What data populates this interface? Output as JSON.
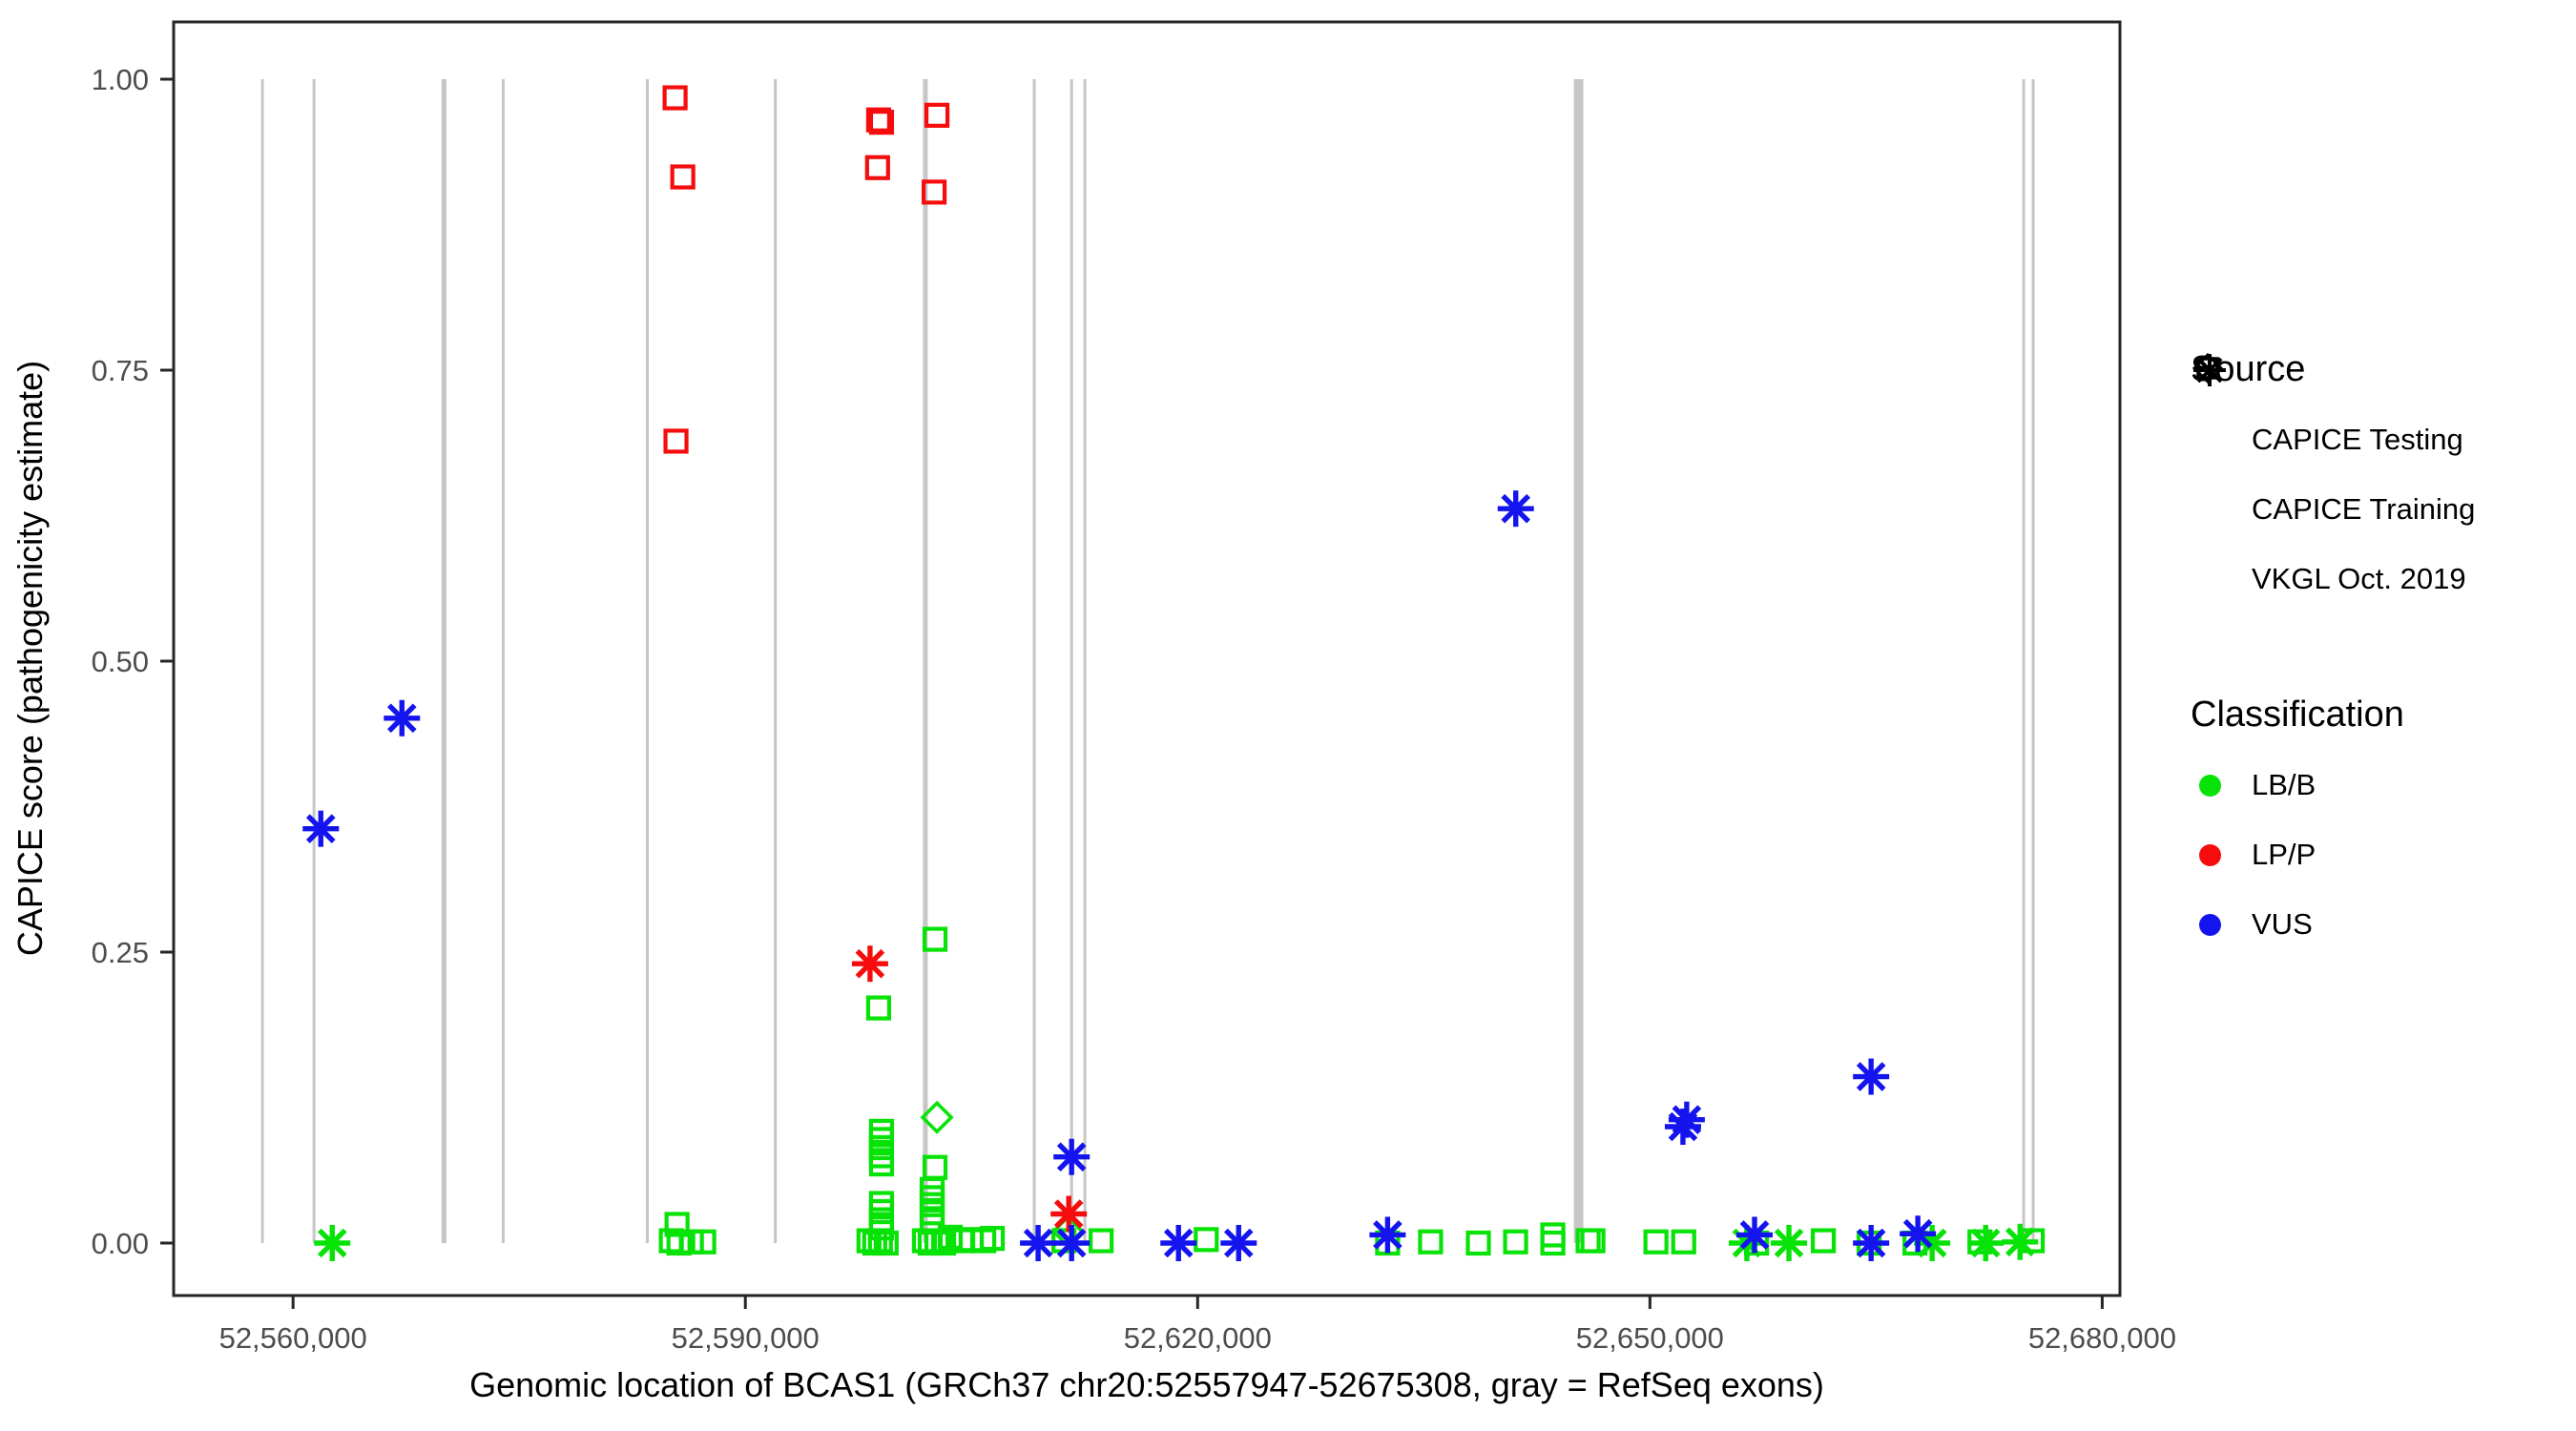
{
  "axes": {
    "x_label": "Genomic location of BCAS1 (GRCh37 chr20:52557947-52675308, gray = RefSeq exons)",
    "y_label": "CAPICE score (pathogenicity estimate)",
    "x_ticks": [
      {
        "v": 52560000,
        "label": "52,560,000"
      },
      {
        "v": 52590000,
        "label": "52,590,000"
      },
      {
        "v": 52620000,
        "label": "52,620,000"
      },
      {
        "v": 52650000,
        "label": "52,650,000"
      },
      {
        "v": 52680000,
        "label": "52,680,000"
      }
    ],
    "y_ticks": [
      {
        "v": 0.0,
        "label": "0.00"
      },
      {
        "v": 0.25,
        "label": "0.25"
      },
      {
        "v": 0.5,
        "label": "0.50"
      },
      {
        "v": 0.75,
        "label": "0.75"
      },
      {
        "v": 1.0,
        "label": "1.00"
      }
    ]
  },
  "legend": {
    "source": {
      "title": "Source",
      "items": [
        {
          "shape": "diamond",
          "label": "CAPICE Testing"
        },
        {
          "shape": "square",
          "label": "CAPICE Training"
        },
        {
          "shape": "asterisk",
          "label": "VKGL Oct. 2019"
        }
      ]
    },
    "classification": {
      "title": "Classification",
      "items": [
        {
          "color_key": "lbb",
          "label": "LB/B"
        },
        {
          "color_key": "lpp",
          "label": "LP/P"
        },
        {
          "color_key": "vus",
          "label": "VUS"
        }
      ]
    }
  },
  "colors": {
    "lbb": "#07E207",
    "lpp": "#F50D0D",
    "vus": "#1414EF",
    "exon": "#C6C6C6",
    "axis": "#262626",
    "tick_label": "#4D4D4D"
  },
  "chart_data": {
    "type": "scatter",
    "title": "",
    "xlabel": "Genomic location of BCAS1 (GRCh37 chr20:52557947-52675308, gray = RefSeq exons)",
    "ylabel": "CAPICE score (pathogenicity estimate)",
    "xlim": [
      52552079,
      52681176
    ],
    "ylim": [
      -0.045,
      1.049
    ],
    "grid": false,
    "legend_position": "right",
    "refseq_exons": [
      {
        "pos": 52557970,
        "width_bp": 190
      },
      {
        "pos": 52561390,
        "width_bp": 190
      },
      {
        "pos": 52570010,
        "width_bp": 320
      },
      {
        "pos": 52573940,
        "width_bp": 190
      },
      {
        "pos": 52583500,
        "width_bp": 190
      },
      {
        "pos": 52591990,
        "width_bp": 190
      },
      {
        "pos": 52601940,
        "width_bp": 320
      },
      {
        "pos": 52609160,
        "width_bp": 190
      },
      {
        "pos": 52611640,
        "width_bp": 190
      },
      {
        "pos": 52612520,
        "width_bp": 190
      },
      {
        "pos": 52645270,
        "width_bp": 630
      },
      {
        "pos": 52674790,
        "width_bp": 190
      },
      {
        "pos": 52675420,
        "width_bp": 190
      }
    ],
    "series": [
      {
        "name": "CAPICE Training / LP/P",
        "source": "CAPICE Training",
        "classification": "LP/P",
        "marker": "square",
        "color_key": "lpp",
        "points": [
          [
            52585340,
            0.984
          ],
          [
            52585850,
            0.916
          ],
          [
            52585400,
            0.689
          ],
          [
            52598840,
            0.965
          ],
          [
            52599030,
            0.963
          ],
          [
            52598770,
            0.924
          ],
          [
            52602710,
            0.969
          ],
          [
            52602520,
            0.903
          ]
        ]
      },
      {
        "name": "CAPICE Training / LB/B",
        "source": "CAPICE Training",
        "classification": "LB/B",
        "marker": "square",
        "color_key": "lbb",
        "points": [
          [
            52585090,
            0.002
          ],
          [
            52585600,
            0.0
          ],
          [
            52586420,
            0.001
          ],
          [
            52587240,
            0.001
          ],
          [
            52585470,
            0.016
          ],
          [
            52598840,
            0.202
          ],
          [
            52599030,
            0.096
          ],
          [
            52599030,
            0.089
          ],
          [
            52599030,
            0.082
          ],
          [
            52599030,
            0.075
          ],
          [
            52599030,
            0.068
          ],
          [
            52599030,
            0.034
          ],
          [
            52599030,
            0.027
          ],
          [
            52599030,
            0.02
          ],
          [
            52599030,
            0.013
          ],
          [
            52598200,
            0.002
          ],
          [
            52598580,
            0.0
          ],
          [
            52598960,
            0.002
          ],
          [
            52599340,
            0.0
          ],
          [
            52602580,
            0.261
          ],
          [
            52602580,
            0.065
          ],
          [
            52602390,
            0.046
          ],
          [
            52602390,
            0.039
          ],
          [
            52602390,
            0.033
          ],
          [
            52602390,
            0.026
          ],
          [
            52602390,
            0.019
          ],
          [
            52601880,
            0.002
          ],
          [
            52602260,
            0.0
          ],
          [
            52602710,
            0.002
          ],
          [
            52603150,
            0.0
          ],
          [
            52603590,
            0.005
          ],
          [
            52604350,
            0.002
          ],
          [
            52604980,
            0.003
          ],
          [
            52605810,
            0.002
          ],
          [
            52606380,
            0.004
          ],
          [
            52611130,
            0.002
          ],
          [
            52613600,
            0.002
          ],
          [
            52620570,
            0.003
          ],
          [
            52632600,
            0.0
          ],
          [
            52635450,
            0.001
          ],
          [
            52638620,
            0.0
          ],
          [
            52641090,
            0.001
          ],
          [
            52643560,
            0.007
          ],
          [
            52643560,
            0.0
          ],
          [
            52645900,
            0.002
          ],
          [
            52646220,
            0.002
          ],
          [
            52650400,
            0.001
          ],
          [
            52652240,
            0.001
          ],
          [
            52657070,
            0.0
          ],
          [
            52661500,
            0.002
          ],
          [
            52664540,
            0.0
          ],
          [
            52667580,
            0.0
          ],
          [
            52671890,
            0.001
          ],
          [
            52675360,
            0.002
          ]
        ]
      },
      {
        "name": "CAPICE Testing / LB/B",
        "source": "CAPICE Testing",
        "classification": "LB/B",
        "marker": "diamond",
        "color_key": "lbb",
        "points": [
          [
            52602710,
            0.108
          ],
          [
            52611390,
            0.01
          ]
        ]
      },
      {
        "name": "VKGL Oct. 2019 / LB/B",
        "source": "VKGL Oct. 2019",
        "classification": "LB/B",
        "marker": "asterisk",
        "color_key": "lbb",
        "points": [
          [
            52562600,
            0.0
          ],
          [
            52656430,
            0.0
          ],
          [
            52659220,
            0.0
          ],
          [
            52668720,
            0.0
          ],
          [
            52672270,
            0.0
          ],
          [
            52674550,
            0.001
          ]
        ]
      },
      {
        "name": "VKGL Oct. 2019 / LP/P",
        "source": "VKGL Oct. 2019",
        "classification": "LP/P",
        "marker": "asterisk",
        "color_key": "lpp",
        "points": [
          [
            52598270,
            0.24
          ],
          [
            52611450,
            0.025
          ]
        ]
      },
      {
        "name": "VKGL Oct. 2019 / VUS",
        "source": "VKGL Oct. 2019",
        "classification": "VUS",
        "marker": "asterisk",
        "color_key": "vus",
        "points": [
          [
            52561840,
            0.356
          ],
          [
            52567220,
            0.451
          ],
          [
            52641100,
            0.631
          ],
          [
            52611640,
            0.074
          ],
          [
            52609420,
            0.0
          ],
          [
            52611640,
            0.0
          ],
          [
            52618730,
            0.0
          ],
          [
            52622720,
            0.0
          ],
          [
            52632600,
            0.007
          ],
          [
            52652190,
            0.1
          ],
          [
            52652440,
            0.106
          ],
          [
            52664670,
            0.143
          ],
          [
            52656940,
            0.007
          ],
          [
            52664670,
            0.0
          ],
          [
            52667770,
            0.008
          ]
        ]
      }
    ]
  }
}
